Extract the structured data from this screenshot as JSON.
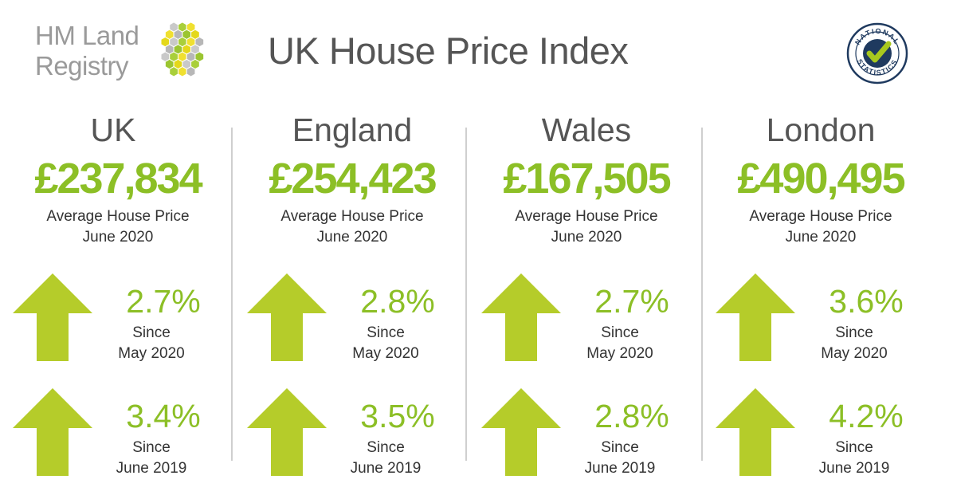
{
  "brand": {
    "line1": "HM Land",
    "line2": "Registry"
  },
  "title": "UK House Price Index",
  "badge": {
    "text": "NATIONAL STATISTICS",
    "icon": "national-statistics-check-icon"
  },
  "colors": {
    "accent": "#8cbf26",
    "heading": "#555555",
    "brand_grey": "#9a9a9a"
  },
  "regions": [
    {
      "name": "UK",
      "price": "£237,834",
      "label": "Average House Price",
      "date": "June 2020",
      "stats": [
        {
          "value": "2.7%",
          "since": "Since",
          "period": "May 2020",
          "direction": "up"
        },
        {
          "value": "3.4%",
          "since": "Since",
          "period": "June 2019",
          "direction": "up"
        }
      ]
    },
    {
      "name": "England",
      "price": "£254,423",
      "label": "Average House Price",
      "date": "June 2020",
      "stats": [
        {
          "value": "2.8%",
          "since": "Since",
          "period": "May 2020",
          "direction": "up"
        },
        {
          "value": "3.5%",
          "since": "Since",
          "period": "June 2019",
          "direction": "up"
        }
      ]
    },
    {
      "name": "Wales",
      "price": "£167,505",
      "label": "Average House Price",
      "date": "June 2020",
      "stats": [
        {
          "value": "2.7%",
          "since": "Since",
          "period": "May 2020",
          "direction": "up"
        },
        {
          "value": "2.8%",
          "since": "Since",
          "period": "June 2019",
          "direction": "up"
        }
      ]
    },
    {
      "name": "London",
      "price": "£490,495",
      "label": "Average House Price",
      "date": "June 2020",
      "stats": [
        {
          "value": "3.6%",
          "since": "Since",
          "period": "May 2020",
          "direction": "up"
        },
        {
          "value": "4.2%",
          "since": "Since",
          "period": "June 2019",
          "direction": "up"
        }
      ]
    }
  ]
}
